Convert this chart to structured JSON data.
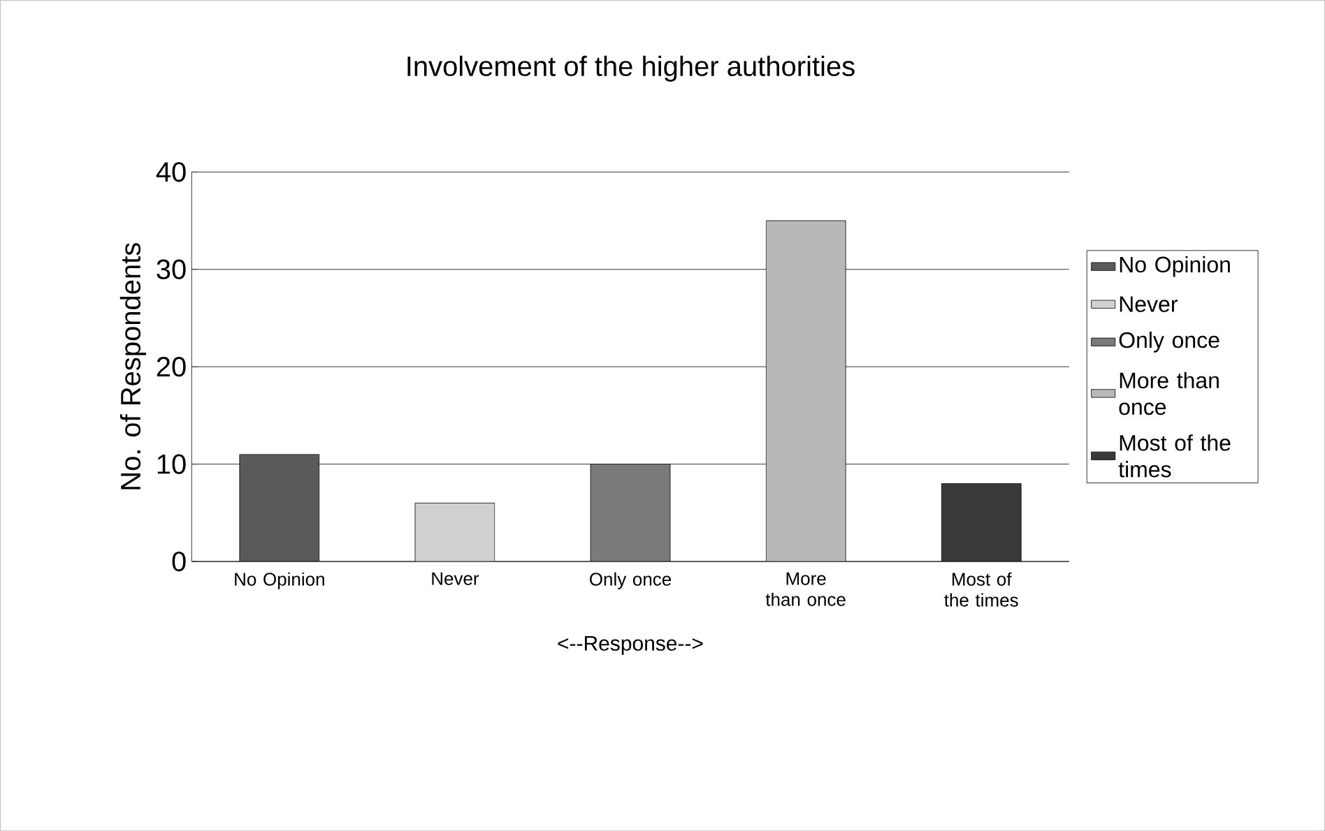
{
  "chart_data": {
    "type": "bar",
    "title": "Involvement of the higher authorities",
    "xlabel": "<--Response-->",
    "ylabel": "No. of Respondents",
    "categories": [
      "No Opinion",
      "Never",
      "Only once",
      "More than once",
      "Most of the times"
    ],
    "series": [
      {
        "name": "No Opinion",
        "color": "#5a5a5a",
        "values": [
          11,
          null,
          null,
          null,
          null
        ]
      },
      {
        "name": "Never",
        "color": "#d0d0d0",
        "values": [
          null,
          6,
          null,
          null,
          null
        ]
      },
      {
        "name": "Only once",
        "color": "#7a7a7a",
        "values": [
          null,
          null,
          10,
          null,
          null
        ]
      },
      {
        "name": "More than once",
        "color": "#b8b8b8",
        "values": [
          null,
          null,
          null,
          35,
          null
        ]
      },
      {
        "name": "Most of the times",
        "color": "#3a3a3a",
        "values": [
          null,
          null,
          null,
          null,
          8
        ]
      }
    ],
    "ylim": [
      0,
      40
    ],
    "yticks": [
      0,
      10,
      20,
      30,
      40
    ],
    "grid": "y",
    "legend": "right"
  }
}
